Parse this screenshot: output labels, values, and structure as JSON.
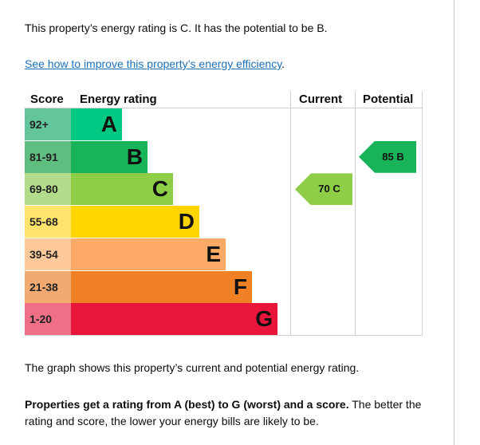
{
  "intro": "This property’s energy rating is C. It has the potential to be B.",
  "improve_link": "See how to improve this property’s energy efficiency",
  "improve_link_suffix": ".",
  "table": {
    "headers": {
      "score": "Score",
      "rating": "Energy rating",
      "current": "Current",
      "potential": "Potential"
    },
    "bands": [
      {
        "score": "92+",
        "letter": "A",
        "color": "#00c781",
        "score_color": "#63c59b"
      },
      {
        "score": "81-91",
        "letter": "B",
        "color": "#19b459",
        "score_color": "#5ebd7f"
      },
      {
        "score": "69-80",
        "letter": "C",
        "color": "#8dce46",
        "score_color": "#b2dc89"
      },
      {
        "score": "55-68",
        "letter": "D",
        "color": "#ffd500",
        "score_color": "#ffe36b"
      },
      {
        "score": "39-54",
        "letter": "E",
        "color": "#fcaa65",
        "score_color": "#fdc99b"
      },
      {
        "score": "21-38",
        "letter": "F",
        "color": "#ef8023",
        "score_color": "#f3aa72"
      },
      {
        "score": "1-20",
        "letter": "G",
        "color": "#e9153b",
        "score_color": "#ef6f87"
      }
    ],
    "current": {
      "label": "70 C",
      "band": "C",
      "value": 70,
      "color": "#8dce46"
    },
    "potential": {
      "label": "85 B",
      "band": "B",
      "value": 85,
      "color": "#19b459"
    }
  },
  "graph_note": "The graph shows this property’s current and potential energy rating.",
  "ratings_bold": "Properties get a rating from A (best) to G (worst) and a score.",
  "ratings_rest": " The better the rating and score, the lower your energy bills are likely to be."
}
